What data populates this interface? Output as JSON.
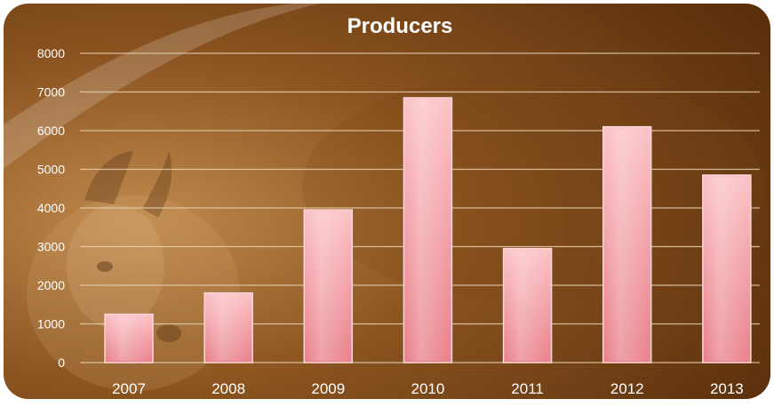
{
  "chart_data": {
    "type": "bar",
    "title": "Producers",
    "xlabel": "",
    "ylabel": "",
    "categories": [
      "2007",
      "2008",
      "2009",
      "2010",
      "2011",
      "2012",
      "2013"
    ],
    "values": [
      1250,
      1800,
      3950,
      6850,
      2950,
      6100,
      4850
    ],
    "ylim": [
      0,
      8000
    ],
    "yticks": [
      0,
      1000,
      2000,
      3000,
      4000,
      5000,
      6000,
      7000,
      8000
    ],
    "grid": true,
    "legend": "none",
    "colors": {
      "bar_top": "#f9b7bc",
      "bar_bottom": "#e9818b",
      "bar_stroke": "#ffd6d9",
      "grid": "#e8cfae",
      "background_light": "#b57a3e",
      "background_dark": "#5a2f0c",
      "text": "#ffffff"
    }
  }
}
